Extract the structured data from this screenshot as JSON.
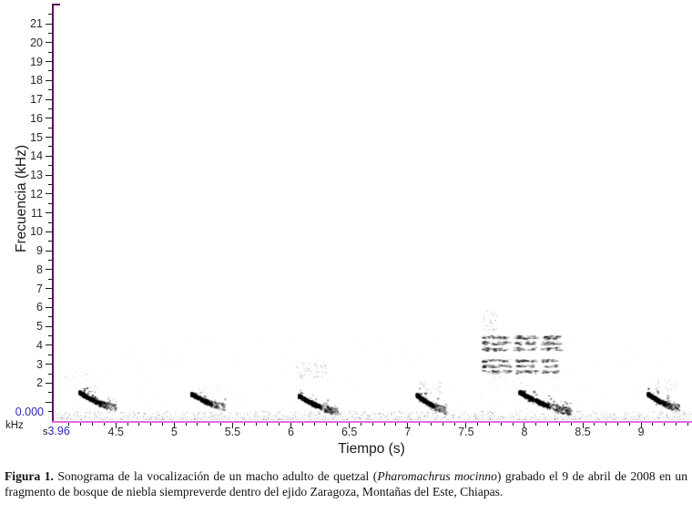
{
  "caption": {
    "label": "Figura 1.",
    "text_before_species": " Sonograma de la vocalización de un macho adulto de quetzal (",
    "species_italic": "Pharomachrus mocinno",
    "text_after_species": ") grabado el 9 de abril de 2008 en un fragmento de bosque de niebla siempreverde dentro del ejido Zaragoza, Montañas del Este, Chiapas."
  },
  "chart_data": {
    "type": "heatmap",
    "subtype": "spectrogram",
    "title": "",
    "xlabel": "Tiempo (s)",
    "ylabel": "Frecuencia (kHz)",
    "grid": false,
    "legend": "none",
    "cursor": {
      "y_value": "0.000",
      "y_unit": "kHz",
      "x_prefix": "s",
      "x_value": "3.96"
    },
    "x_axis": {
      "unit": "s",
      "range": [
        3.96,
        9.42
      ],
      "start_label": "3.96",
      "major_ticks": [
        "4.5",
        "5",
        "5.5",
        "6",
        "6.5",
        "7",
        "7.5",
        "8",
        "8.5",
        "9"
      ],
      "minor_step": 0.1
    },
    "y_axis": {
      "unit": "kHz",
      "range": [
        0,
        22.1
      ],
      "major_ticks": [
        21,
        20,
        19,
        18,
        17,
        16,
        15,
        14,
        13,
        12,
        11,
        10,
        9,
        8,
        7,
        6,
        5,
        4,
        3,
        2,
        1
      ],
      "labeled_ticks": [
        "21",
        "20",
        "19",
        "18",
        "17",
        "16",
        "15",
        "14",
        "13",
        "12",
        "11",
        "10",
        "9",
        "8",
        "7",
        "6",
        "5",
        "4",
        "3",
        "2"
      ],
      "minor_step": 0.5
    },
    "colors": {
      "y_axis_line": "#5c0f5c",
      "x_axis_line": "#e36ae3",
      "tick_mark": "#1a1a1a",
      "tick_text": "#2a2a2a",
      "cursor_text": "#2a2ab4",
      "marks": "#000000",
      "background": "#ffffff"
    },
    "calls": [
      {
        "id": "note-1",
        "kind": "sweep",
        "t": [
          4.18,
          4.5
        ],
        "f": [
          1.55,
          0.75
        ],
        "intensity": 1.0
      },
      {
        "id": "note-2",
        "kind": "sweep",
        "t": [
          5.14,
          5.43
        ],
        "f": [
          1.45,
          0.78
        ],
        "intensity": 0.85
      },
      {
        "id": "note-3",
        "kind": "sweep",
        "t": [
          6.06,
          6.4
        ],
        "f": [
          1.35,
          0.55
        ],
        "intensity": 0.95
      },
      {
        "id": "note-4",
        "kind": "sweep",
        "t": [
          7.07,
          7.33
        ],
        "f": [
          1.4,
          0.6
        ],
        "intensity": 0.9
      },
      {
        "id": "loud-syllable-upper-band",
        "kind": "band",
        "f": [
          3.75,
          4.55
        ],
        "segments": [
          [
            7.63,
            7.86
          ],
          [
            7.9,
            8.09
          ],
          [
            8.13,
            8.3
          ]
        ],
        "intensity": 0.75
      },
      {
        "id": "loud-syllable-mid-band",
        "kind": "band",
        "f": [
          2.55,
          3.3
        ],
        "segments": [
          [
            7.63,
            7.87
          ],
          [
            7.92,
            8.1
          ],
          [
            8.14,
            8.27
          ]
        ],
        "intensity": 0.7
      },
      {
        "id": "loud-syllable-low-sweep",
        "kind": "sweep",
        "t": [
          7.95,
          8.4
        ],
        "f": [
          1.55,
          0.55
        ],
        "intensity": 1.15
      },
      {
        "id": "note-5",
        "kind": "sweep",
        "t": [
          9.05,
          9.33
        ],
        "f": [
          1.45,
          0.7
        ],
        "intensity": 0.95
      }
    ],
    "faint_clusters": [
      {
        "t": [
          4.05,
          4.35
        ],
        "f": [
          1.7,
          2.7
        ],
        "density": 0.25
      },
      {
        "t": [
          5.2,
          5.45
        ],
        "f": [
          1.5,
          1.9
        ],
        "density": 0.2
      },
      {
        "t": [
          6.03,
          6.3
        ],
        "f": [
          2.3,
          3.1
        ],
        "density": 0.45
      },
      {
        "t": [
          7.1,
          7.3
        ],
        "f": [
          1.5,
          2.1
        ],
        "density": 0.3
      },
      {
        "t": [
          7.64,
          7.76
        ],
        "f": [
          4.7,
          5.9
        ],
        "density": 0.3
      },
      {
        "t": [
          7.7,
          8.3
        ],
        "f": [
          1.7,
          2.4
        ],
        "density": 0.25
      },
      {
        "t": [
          9.1,
          9.3
        ],
        "f": [
          1.6,
          2.2
        ],
        "density": 0.3
      }
    ],
    "noise_floor": {
      "band_khz": [
        0,
        0.5
      ],
      "density": 1.0
    }
  }
}
